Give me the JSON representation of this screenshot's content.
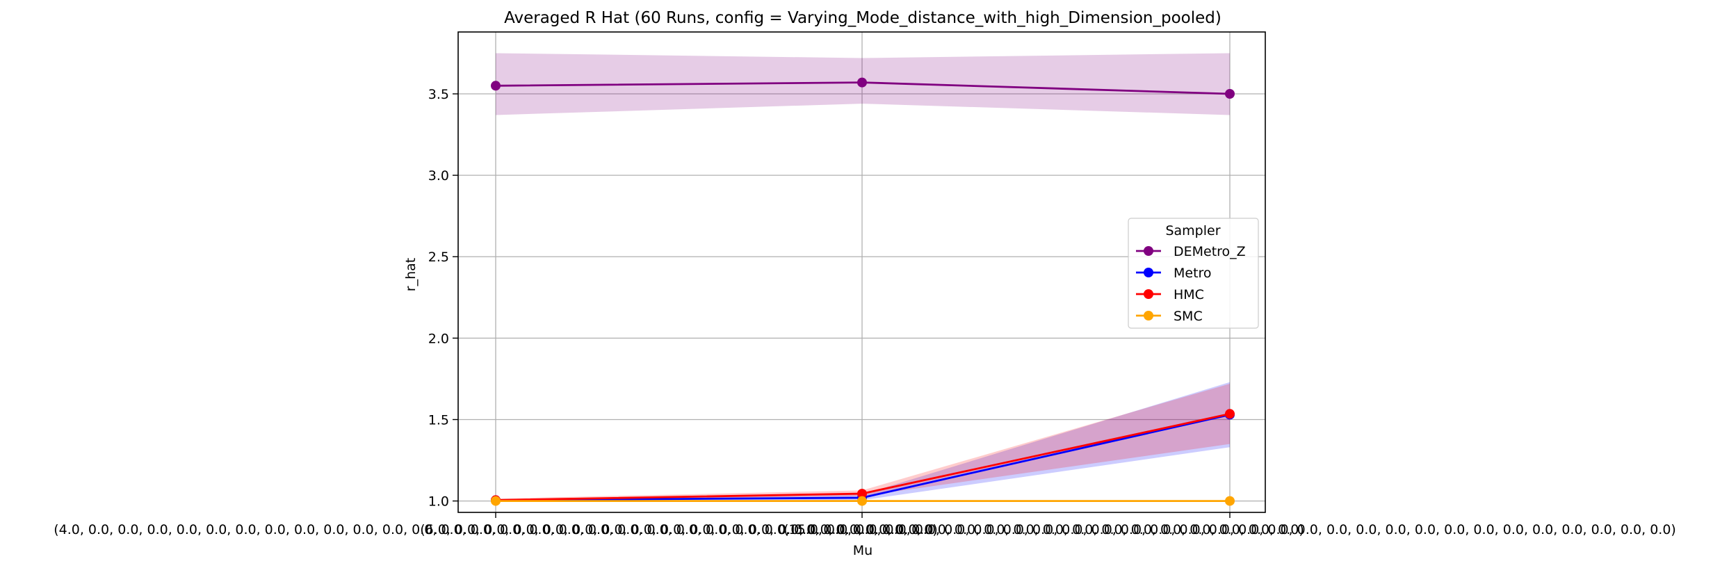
{
  "chart_data": {
    "type": "line",
    "title": "Averaged R Hat (60 Runs, config = Varying_Mode_distance_with_high_Dimension_pooled)",
    "xlabel": "Mu",
    "ylabel": "r_hat",
    "categories": [
      "(4.0, 0.0, 0.0, 0.0, 0.0, 0.0, 0.0, 0.0, 0.0, 0.0, 0.0, 0.0, 0.0, 0.0, 0.0, 0.0, 0.0, 0.0, 0.0, 0.0, 0.0, 0.0, 0.0, 0.0, 0.0, 0.0, 0.0, 0.0, 0.0, 0.0)",
      "(6.0, 0.0, 0.0, 0.0, 0.0, 0.0, 0.0, 0.0, 0.0, 0.0, 0.0, 0.0, 0.0, 0.0, 0.0, 0.0, 0.0, 0.0, 0.0, 0.0, 0.0, 0.0, 0.0, 0.0, 0.0, 0.0, 0.0, 0.0, 0.0, 0.0)",
      "(15.0, 0.0, 0.0, 0.0, 0.0, 0.0, 0.0, 0.0, 0.0, 0.0, 0.0, 0.0, 0.0, 0.0, 0.0, 0.0, 0.0, 0.0, 0.0, 0.0, 0.0, 0.0, 0.0, 0.0, 0.0, 0.0, 0.0, 0.0, 0.0, 0.0)"
    ],
    "ylim": [
      0.93,
      3.88
    ],
    "yticks": [
      "1.0",
      "1.5",
      "2.0",
      "2.5",
      "3.0",
      "3.5"
    ],
    "grid": true,
    "legend": {
      "title": "Sampler",
      "placement": "center-right"
    },
    "series": [
      {
        "name": "DEMetro_Z",
        "color": "#800080",
        "values": [
          3.55,
          3.57,
          3.5
        ],
        "band_low": [
          3.37,
          3.44,
          3.37
        ],
        "band_high": [
          3.75,
          3.72,
          3.75
        ]
      },
      {
        "name": "Metro",
        "color": "#0000ff",
        "values": [
          1.005,
          1.02,
          1.53
        ],
        "band_low": [
          1.0,
          1.005,
          1.33
        ],
        "band_high": [
          1.01,
          1.04,
          1.73
        ]
      },
      {
        "name": "HMC",
        "color": "#ff0000",
        "values": [
          1.005,
          1.045,
          1.535
        ],
        "band_low": [
          1.0,
          1.03,
          1.35
        ],
        "band_high": [
          1.015,
          1.065,
          1.72
        ]
      },
      {
        "name": "SMC",
        "color": "#ffa500",
        "values": [
          1.0,
          1.0,
          1.0
        ],
        "band_low": [
          1.0,
          1.0,
          1.0
        ],
        "band_high": [
          1.0,
          1.0,
          1.0
        ]
      }
    ]
  }
}
